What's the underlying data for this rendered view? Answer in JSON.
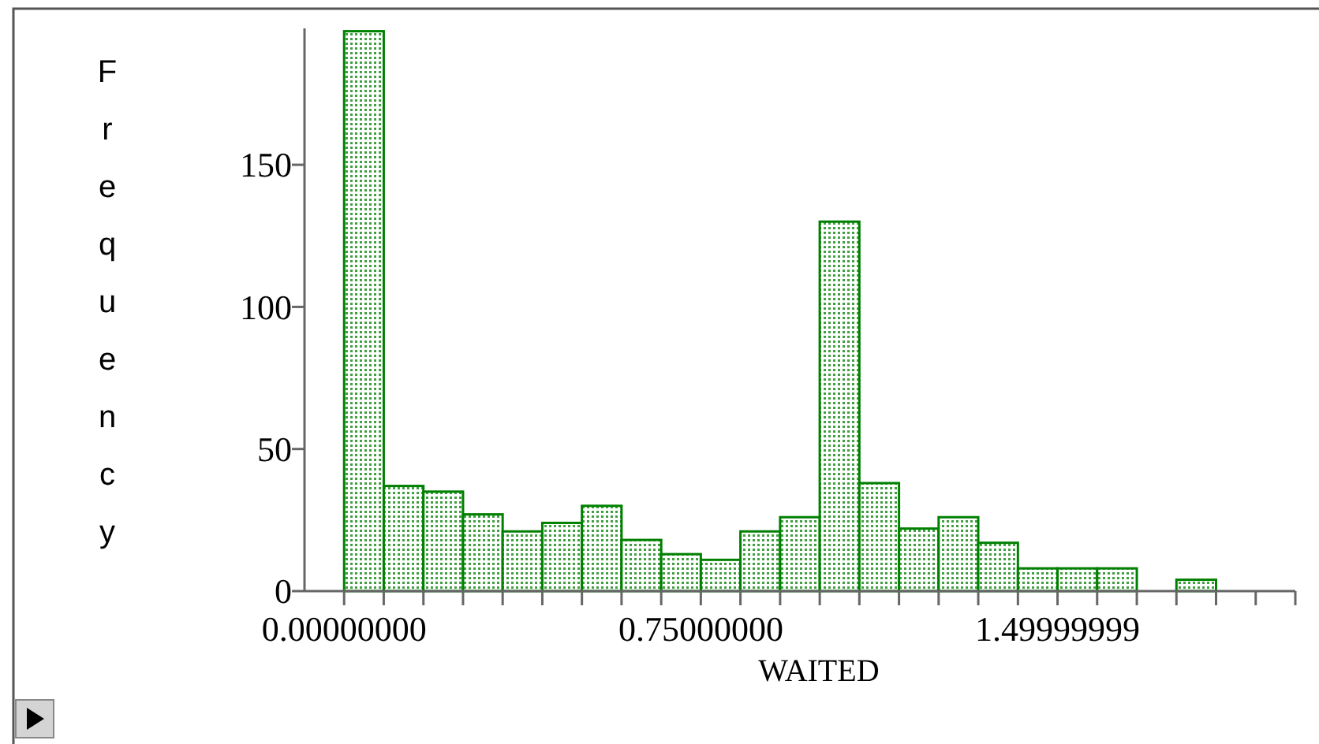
{
  "chart_data": {
    "type": "histogram",
    "xlabel": "WAITED",
    "ylabel": "Frequency",
    "color": "#008000",
    "bins": [
      0,
      0.0833,
      0.1667,
      0.25,
      0.3333,
      0.4167,
      0.5,
      0.5833,
      0.6667,
      0.75,
      0.8333,
      0.9167,
      1,
      1.0833,
      1.1667,
      1.25,
      1.3333,
      1.4167,
      1.5,
      1.5833,
      1.6667,
      1.75,
      1.8333,
      1.9167,
      2
    ],
    "values": [
      197,
      37,
      35,
      27,
      21,
      24,
      30,
      18,
      13,
      11,
      21,
      26,
      130,
      38,
      22,
      26,
      17,
      8,
      8,
      8,
      0,
      4,
      0,
      0
    ],
    "xlim": [
      -0.0833,
      2
    ],
    "ylim": [
      0,
      198
    ],
    "yticks": [
      0,
      50,
      100,
      150
    ],
    "xticks": [
      {
        "value": 0,
        "label": "0.00000000"
      },
      {
        "value": 0.0833,
        "label": null
      },
      {
        "value": 0.1667,
        "label": null
      },
      {
        "value": 0.25,
        "label": null
      },
      {
        "value": 0.3333,
        "label": null
      },
      {
        "value": 0.4167,
        "label": null
      },
      {
        "value": 0.5,
        "label": null
      },
      {
        "value": 0.5833,
        "label": null
      },
      {
        "value": 0.6667,
        "label": null
      },
      {
        "value": 0.75,
        "label": "0.75000000"
      },
      {
        "value": 0.8333,
        "label": null
      },
      {
        "value": 0.9167,
        "label": null
      },
      {
        "value": 1,
        "label": null
      },
      {
        "value": 1.0833,
        "label": null
      },
      {
        "value": 1.1667,
        "label": null
      },
      {
        "value": 1.25,
        "label": null
      },
      {
        "value": 1.3333,
        "label": null
      },
      {
        "value": 1.4167,
        "label": null
      },
      {
        "value": 1.49999999,
        "label": "1.49999999"
      },
      {
        "value": 1.5833,
        "label": null
      },
      {
        "value": 1.6667,
        "label": null
      },
      {
        "value": 1.75,
        "label": null
      },
      {
        "value": 1.8333,
        "label": null
      },
      {
        "value": 1.9167,
        "label": null
      },
      {
        "value": 2,
        "label": null
      }
    ]
  }
}
